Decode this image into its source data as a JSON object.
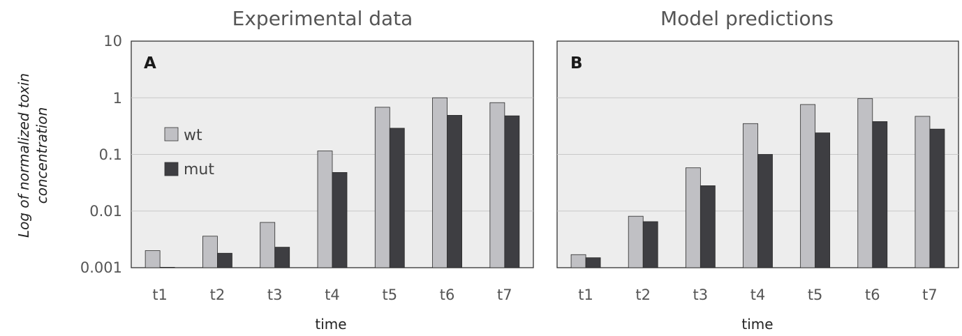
{
  "figure": {
    "ylabel_lines": [
      "Log of normalized  toxin",
      "concentration"
    ],
    "ytick_labels": [
      "10",
      "1",
      "0.1",
      "0.01",
      "0.001"
    ],
    "legend": [
      {
        "label": "wt",
        "color": "#c0c0c4"
      },
      {
        "label": "mut",
        "color": "#3e3e42"
      }
    ]
  },
  "chart_data": [
    {
      "type": "bar",
      "title": "Experimental data",
      "panel_label": "A",
      "xlabel": "time",
      "ylabel": "Log of normalized  toxin concentration",
      "yscale": "log",
      "ylim": [
        0.001,
        10
      ],
      "grid": true,
      "legend_position": "left",
      "categories": [
        "t1",
        "t2",
        "t3",
        "t4",
        "t5",
        "t6",
        "t7"
      ],
      "series": [
        {
          "name": "wt",
          "color": "#c0c0c4",
          "values": [
            0.002,
            0.0036,
            0.0063,
            0.115,
            0.68,
            1.0,
            0.82
          ]
        },
        {
          "name": "mut",
          "color": "#3e3e42",
          "values": [
            0.001,
            0.0018,
            0.0023,
            0.048,
            0.29,
            0.49,
            0.48
          ]
        }
      ]
    },
    {
      "type": "bar",
      "title": "Model predictions",
      "panel_label": "B",
      "xlabel": "time",
      "yscale": "log",
      "ylim": [
        0.001,
        10
      ],
      "grid": true,
      "categories": [
        "t1",
        "t2",
        "t3",
        "t4",
        "t5",
        "t6",
        "t7"
      ],
      "series": [
        {
          "name": "wt",
          "color": "#c0c0c4",
          "values": [
            0.0017,
            0.0081,
            0.058,
            0.35,
            0.76,
            0.97,
            0.47
          ]
        },
        {
          "name": "mut",
          "color": "#3e3e42",
          "values": [
            0.0015,
            0.0065,
            0.028,
            0.1,
            0.24,
            0.38,
            0.28
          ]
        }
      ]
    }
  ]
}
